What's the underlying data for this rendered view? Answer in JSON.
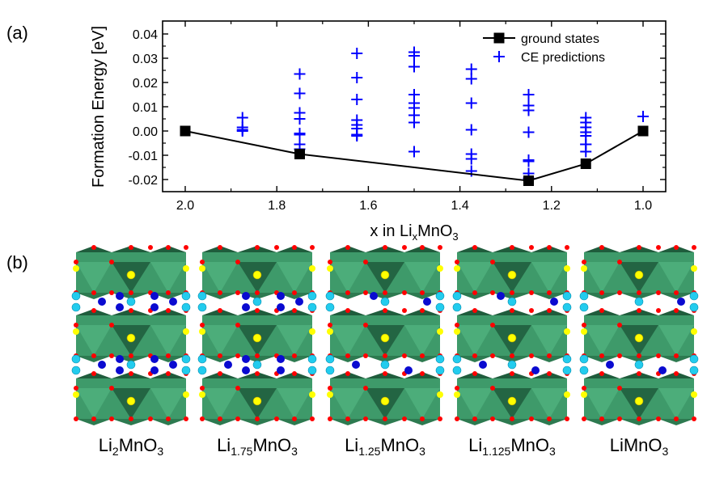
{
  "panels": {
    "a_label": "(a)",
    "b_label": "(b)"
  },
  "chart_data": {
    "type": "scatter",
    "title": "",
    "xlabel_prefix": "x in Li",
    "xlabel_sub": "x",
    "xlabel_suffix": "MnO",
    "xlabel_sub2": "3",
    "ylabel": "Formation Energy [eV]",
    "xlim": [
      2.05,
      0.95
    ],
    "ylim": [
      -0.0235,
      0.0455
    ],
    "x_reversed": true,
    "xticks": [
      2.0,
      1.8,
      1.6,
      1.4,
      1.2,
      1.0
    ],
    "xtick_labels": [
      "2.0",
      "1.8",
      "1.6",
      "1.4",
      "1.2",
      "1.0"
    ],
    "xminor": [
      1.9,
      1.7,
      1.5,
      1.3,
      1.1
    ],
    "yticks": [
      -0.02,
      -0.01,
      0.0,
      0.01,
      0.02,
      0.03,
      0.04
    ],
    "ytick_labels": [
      "-0.02",
      "-0.01",
      "0.00",
      "0.01",
      "0.02",
      "0.03",
      "0.04"
    ],
    "yminor": [
      -0.015,
      -0.005,
      0.005,
      0.015,
      0.025,
      0.035
    ],
    "grid": false,
    "legend_position": "top-right",
    "series": [
      {
        "name": "ground states",
        "marker": "square",
        "line": true,
        "color": "#000000",
        "x": [
          2.0,
          1.75,
          1.25,
          1.125,
          1.0
        ],
        "y": [
          0.0,
          -0.0095,
          -0.0205,
          -0.0135,
          0.0
        ]
      },
      {
        "name": "CE predictions",
        "marker": "plus",
        "line": false,
        "color": "#0000ff",
        "x": [
          1.875,
          1.875,
          1.875,
          1.875,
          1.75,
          1.75,
          1.75,
          1.75,
          1.75,
          1.75,
          1.75,
          1.75,
          1.625,
          1.625,
          1.625,
          1.625,
          1.625,
          1.625,
          1.625,
          1.625,
          1.5,
          1.5,
          1.5,
          1.5,
          1.5,
          1.5,
          1.5,
          1.5,
          1.5,
          1.375,
          1.375,
          1.375,
          1.375,
          1.375,
          1.375,
          1.375,
          1.25,
          1.25,
          1.25,
          1.25,
          1.25,
          1.25,
          1.25,
          1.25,
          1.125,
          1.125,
          1.125,
          1.125,
          1.125,
          1.125,
          1.125,
          1.125,
          1.0
        ],
        "y": [
          0.0055,
          0.0015,
          0.0005,
          0.0,
          0.0235,
          0.0155,
          0.0075,
          0.005,
          -0.001,
          -0.0015,
          -0.0055,
          -0.0075,
          0.032,
          0.022,
          0.013,
          0.0045,
          0.0025,
          0.001,
          -0.0015,
          -0.002,
          0.0325,
          0.031,
          0.0265,
          0.015,
          0.0115,
          0.0095,
          0.0065,
          0.0035,
          -0.0085,
          0.0255,
          0.0215,
          0.0115,
          0.0005,
          -0.0095,
          -0.0115,
          -0.0165,
          0.015,
          0.0105,
          0.0085,
          -0.0005,
          -0.012,
          -0.0125,
          -0.0175,
          -0.0195,
          0.0055,
          0.0035,
          0.0015,
          -0.0005,
          -0.002,
          -0.0055,
          -0.0055,
          -0.0085,
          0.006
        ]
      }
    ]
  },
  "structures": {
    "colors": {
      "octahedron": "#3e9a6a",
      "octahedron_dark": "#1f5c3c",
      "oxygen": "#ff0000",
      "li_in_mn_layer": "#ffff00",
      "li_interlayer_cyan": "#22ccee",
      "li_interlayer_blue": "#0a0ad0"
    },
    "items": [
      {
        "label_main": "Li",
        "label_sub": "2",
        "label_rest": "MnO",
        "label_sub2": "3",
        "blue_sites": 8
      },
      {
        "label_main": "Li",
        "label_sub": "1.75",
        "label_rest": "MnO",
        "label_sub2": "3",
        "blue_sites": 7
      },
      {
        "label_main": "Li",
        "label_sub": "1.25",
        "label_rest": "MnO",
        "label_sub2": "3",
        "blue_sites": 4
      },
      {
        "label_main": "Li",
        "label_sub": "1.125",
        "label_rest": "MnO",
        "label_sub2": "3",
        "blue_sites": 4
      },
      {
        "label_main": "LiMnO",
        "label_sub": "3",
        "label_rest": "",
        "label_sub2": "",
        "blue_sites": 3
      }
    ]
  }
}
